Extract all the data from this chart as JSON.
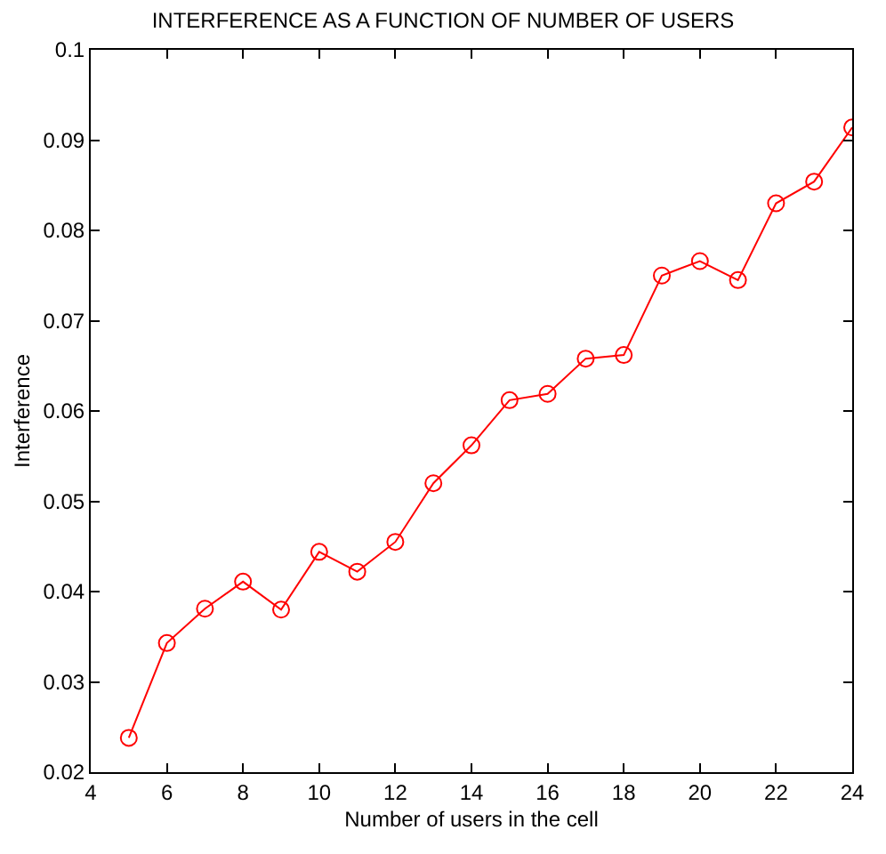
{
  "chart_data": {
    "type": "line",
    "title": "INTERFERENCE AS A FUNCTION OF NUMBER OF USERS",
    "xlabel": "Number of users in the cell",
    "ylabel": "Interference",
    "x": [
      5,
      6,
      7,
      8,
      9,
      10,
      11,
      12,
      13,
      14,
      15,
      16,
      17,
      18,
      19,
      20,
      21,
      22,
      23,
      24
    ],
    "series": [
      {
        "color": "#ff0000",
        "values": [
          0.0238,
          0.0343,
          0.0381,
          0.0411,
          0.038,
          0.0444,
          0.0422,
          0.0455,
          0.052,
          0.0562,
          0.0612,
          0.0619,
          0.0658,
          0.0662,
          0.075,
          0.0766,
          0.0745,
          0.083,
          0.0854,
          0.0914
        ]
      }
    ],
    "xlim": [
      4,
      24
    ],
    "xticks": [
      4,
      6,
      8,
      10,
      12,
      14,
      16,
      18,
      20,
      22,
      24
    ],
    "ylim": [
      0.02,
      0.1
    ],
    "yticks": [
      0.02,
      0.03,
      0.04,
      0.05,
      0.06,
      0.07,
      0.08,
      0.09,
      0.1
    ],
    "marker": "circle",
    "line_style": "solid",
    "legend": false
  }
}
